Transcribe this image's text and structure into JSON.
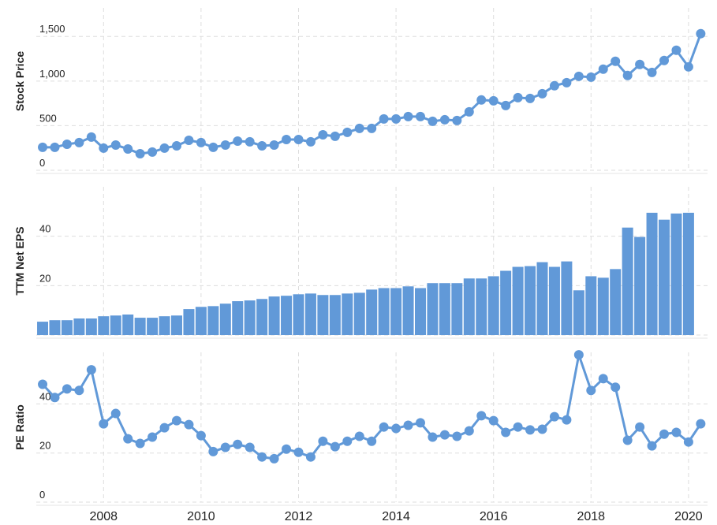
{
  "chart_data": [
    {
      "type": "line",
      "ylabel": "Stock Price",
      "color": "#6199d8",
      "x": [
        2006.75,
        2007,
        2007.25,
        2007.5,
        2007.75,
        2008,
        2008.25,
        2008.5,
        2008.75,
        2009,
        2009.25,
        2009.5,
        2009.75,
        2010,
        2010.25,
        2010.5,
        2010.75,
        2011,
        2011.25,
        2011.5,
        2011.75,
        2012,
        2012.25,
        2012.5,
        2012.75,
        2013,
        2013.25,
        2013.5,
        2013.75,
        2014,
        2014.25,
        2014.5,
        2014.75,
        2015,
        2015.25,
        2015.5,
        2015.75,
        2016,
        2016.25,
        2016.5,
        2016.75,
        2017,
        2017.25,
        2017.5,
        2017.75,
        2018,
        2018.25,
        2018.5,
        2018.75,
        2019,
        2019.25,
        2019.5,
        2019.75,
        2020,
        2020.25
      ],
      "values": [
        257,
        257,
        292,
        310,
        372,
        248,
        283,
        239,
        186,
        204,
        248,
        274,
        336,
        310,
        257,
        283,
        327,
        319,
        274,
        283,
        345,
        345,
        319,
        398,
        381,
        425,
        469,
        469,
        575,
        575,
        602,
        602,
        549,
        566,
        558,
        655,
        788,
        779,
        726,
        814,
        805,
        858,
        947,
        982,
        1053,
        1044,
        1133,
        1221,
        1062,
        1186,
        1097,
        1230,
        1345,
        1159,
        1531
      ],
      "ylim": [
        0,
        1820
      ],
      "yticks": [
        0,
        500,
        {
          "value": 1000,
          "label": "1,000"
        },
        {
          "value": 1500,
          "label": "1,500"
        }
      ],
      "grid": true
    },
    {
      "type": "bar",
      "ylabel": "TTM Net EPS",
      "color": "#6199d8",
      "x": [
        2006.75,
        2007,
        2007.25,
        2007.5,
        2007.75,
        2008,
        2008.25,
        2008.5,
        2008.75,
        2009,
        2009.25,
        2009.5,
        2009.75,
        2010,
        2010.25,
        2010.5,
        2010.75,
        2011,
        2011.25,
        2011.5,
        2011.75,
        2012,
        2012.25,
        2012.5,
        2012.75,
        2013,
        2013.25,
        2013.5,
        2013.75,
        2014,
        2014.25,
        2014.5,
        2014.75,
        2015,
        2015.25,
        2015.5,
        2015.75,
        2016,
        2016.25,
        2016.5,
        2016.75,
        2017,
        2017.25,
        2017.5,
        2017.75,
        2018,
        2018.25,
        2018.5,
        2018.75,
        2019,
        2019.25,
        2019.5,
        2019.75,
        2020,
        2020.25
      ],
      "values": [
        5.4,
        6.0,
        6.0,
        6.7,
        6.7,
        7.6,
        7.9,
        8.3,
        7.0,
        7.0,
        7.6,
        7.9,
        10.5,
        11.4,
        11.7,
        12.7,
        13.7,
        14.0,
        14.6,
        15.6,
        15.9,
        16.5,
        16.8,
        16.2,
        16.2,
        16.8,
        17.1,
        18.4,
        19.0,
        19.0,
        19.7,
        19.0,
        21.0,
        21.0,
        21.0,
        22.9,
        22.9,
        23.8,
        26.0,
        27.6,
        27.9,
        29.5,
        27.6,
        29.8,
        18.1,
        23.8,
        23.2,
        26.7,
        43.5,
        39.7,
        49.5,
        46.7,
        49.2,
        49.5,
        null
      ],
      "ylim": [
        0,
        60
      ],
      "yticks": [
        0,
        20,
        40
      ],
      "grid": true
    },
    {
      "type": "line",
      "ylabel": "PE Ratio",
      "color": "#6199d8",
      "x": [
        2006.75,
        2007,
        2007.25,
        2007.5,
        2007.75,
        2008,
        2008.25,
        2008.5,
        2008.75,
        2009,
        2009.25,
        2009.5,
        2009.75,
        2010,
        2010.25,
        2010.5,
        2010.75,
        2011,
        2011.25,
        2011.5,
        2011.75,
        2012,
        2012.25,
        2012.5,
        2012.75,
        2013,
        2013.25,
        2013.5,
        2013.75,
        2014,
        2014.25,
        2014.5,
        2014.75,
        2015,
        2015.25,
        2015.5,
        2015.75,
        2016,
        2016.25,
        2016.5,
        2016.75,
        2017,
        2017.25,
        2017.5,
        2017.75,
        2018,
        2018.25,
        2018.5,
        2018.75,
        2019,
        2019.25,
        2019.5,
        2019.75,
        2020,
        2020.25
      ],
      "values": [
        48,
        42.6,
        46.1,
        45.5,
        53.9,
        31.9,
        36.1,
        25.8,
        23.9,
        26.5,
        30.3,
        33.2,
        31.6,
        27.1,
        20.6,
        22.3,
        23.5,
        22.3,
        18.4,
        17.7,
        21.6,
        20.3,
        18.4,
        24.8,
        22.6,
        24.8,
        26.8,
        24.8,
        30.6,
        30,
        31.3,
        32.3,
        26.5,
        27.4,
        26.8,
        29,
        35.2,
        33.2,
        28.4,
        30.6,
        29.4,
        29.7,
        34.8,
        33.5,
        60,
        45.5,
        50.3,
        46.8,
        25.2,
        30.6,
        22.9,
        27.7,
        28.4,
        24.5,
        31.9
      ],
      "ylim": [
        0,
        61
      ],
      "yticks": [
        0,
        20,
        40
      ],
      "grid": true,
      "xlim": [
        2006.62,
        2020.39
      ],
      "xticks": [
        2008,
        2010,
        2012,
        2014,
        2016,
        2018,
        2020
      ]
    }
  ]
}
